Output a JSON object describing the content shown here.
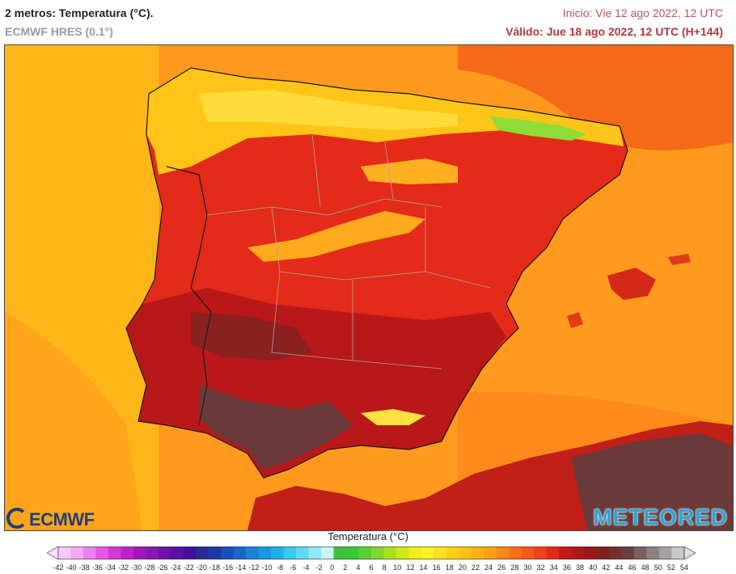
{
  "header": {
    "title": "2 metros: Temperatura (°C).",
    "subtitle": "ECMWF HRES (0.1°)",
    "init_text": "Inicio: Vie 12 ago 2022, 12 UTC",
    "valid_text": "Válido: Jue 18 ago 2022, 12 UTC (H+144)"
  },
  "map": {
    "region": "Iberian Peninsula",
    "sea_color": "#ff9a1e",
    "atlantic_color": "#ffb618",
    "land_colors": {
      "hot": "#d01818",
      "very_hot": "#8e1a1a",
      "extreme": "#5a3a3a",
      "warm": "#f24a18",
      "mild": "#ffd21a",
      "cool": "#7fdc28"
    }
  },
  "legend": {
    "title": "Temperatura (°C)",
    "ticks": [
      "-42",
      "-40",
      "-38",
      "-36",
      "-34",
      "-32",
      "-30",
      "-28",
      "-26",
      "-24",
      "-22",
      "-20",
      "-18",
      "-16",
      "-14",
      "-12",
      "-10",
      "-8",
      "-6",
      "-4",
      "-2",
      "0",
      "2",
      "4",
      "6",
      "8",
      "10",
      "12",
      "14",
      "16",
      "18",
      "20",
      "22",
      "24",
      "26",
      "28",
      "30",
      "32",
      "34",
      "36",
      "38",
      "40",
      "42",
      "44",
      "46",
      "48",
      "50",
      "52",
      "54"
    ],
    "colors": [
      "#f8c8f8",
      "#f4a8f4",
      "#ee80ee",
      "#e858e8",
      "#d838d8",
      "#c020c8",
      "#a018b8",
      "#8818b0",
      "#7010a8",
      "#5a10a0",
      "#40109a",
      "#2a2a90",
      "#1a3aa0",
      "#1850b8",
      "#1868c8",
      "#1a80d8",
      "#1898e0",
      "#20b0e8",
      "#38c8f0",
      "#60d8f0",
      "#90e8f0",
      "#c8f4f4",
      "#40c040",
      "#38c838",
      "#58d030",
      "#80d828",
      "#a8e020",
      "#d0e818",
      "#f0ee18",
      "#fff020",
      "#ffe020",
      "#ffd018",
      "#ffc018",
      "#ffb018",
      "#ffa018",
      "#ff8818",
      "#ff7018",
      "#f85818",
      "#f04018",
      "#e02a18",
      "#c81818",
      "#b01818",
      "#981818",
      "#802020",
      "#703030",
      "#684040",
      "#786060",
      "#908080",
      "#a8a0a0",
      "#c8c8c8"
    ]
  },
  "logos": {
    "left": "ECMWF",
    "right": "METEORED"
  }
}
